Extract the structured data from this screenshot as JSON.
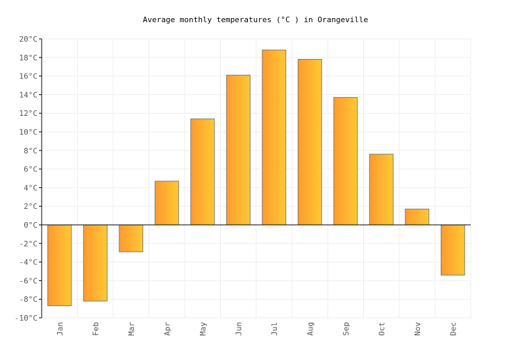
{
  "chart_data": {
    "type": "bar",
    "title": "Average monthly temperatures (°C ) in Orangeville",
    "xlabel": "",
    "ylabel": "",
    "categories": [
      "Jan",
      "Feb",
      "Mar",
      "Apr",
      "May",
      "Jun",
      "Jul",
      "Aug",
      "Sep",
      "Oct",
      "Nov",
      "Dec"
    ],
    "values": [
      -8.7,
      -8.2,
      -2.9,
      4.7,
      11.4,
      16.1,
      18.8,
      17.8,
      13.7,
      7.6,
      1.7,
      -5.4
    ],
    "ylim": [
      -10,
      20
    ],
    "yticks": [
      -10,
      -8,
      -6,
      -4,
      -2,
      0,
      2,
      4,
      6,
      8,
      10,
      12,
      14,
      16,
      18,
      20
    ],
    "ytick_suffix": "°C",
    "grid": true,
    "legend": "none",
    "colors": {
      "bar_start": "#ff9a2e",
      "bar_end": "#ffc933",
      "bar_stroke": "#7a7a7a",
      "grid": "#eeeeee",
      "axis": "#000000"
    }
  }
}
